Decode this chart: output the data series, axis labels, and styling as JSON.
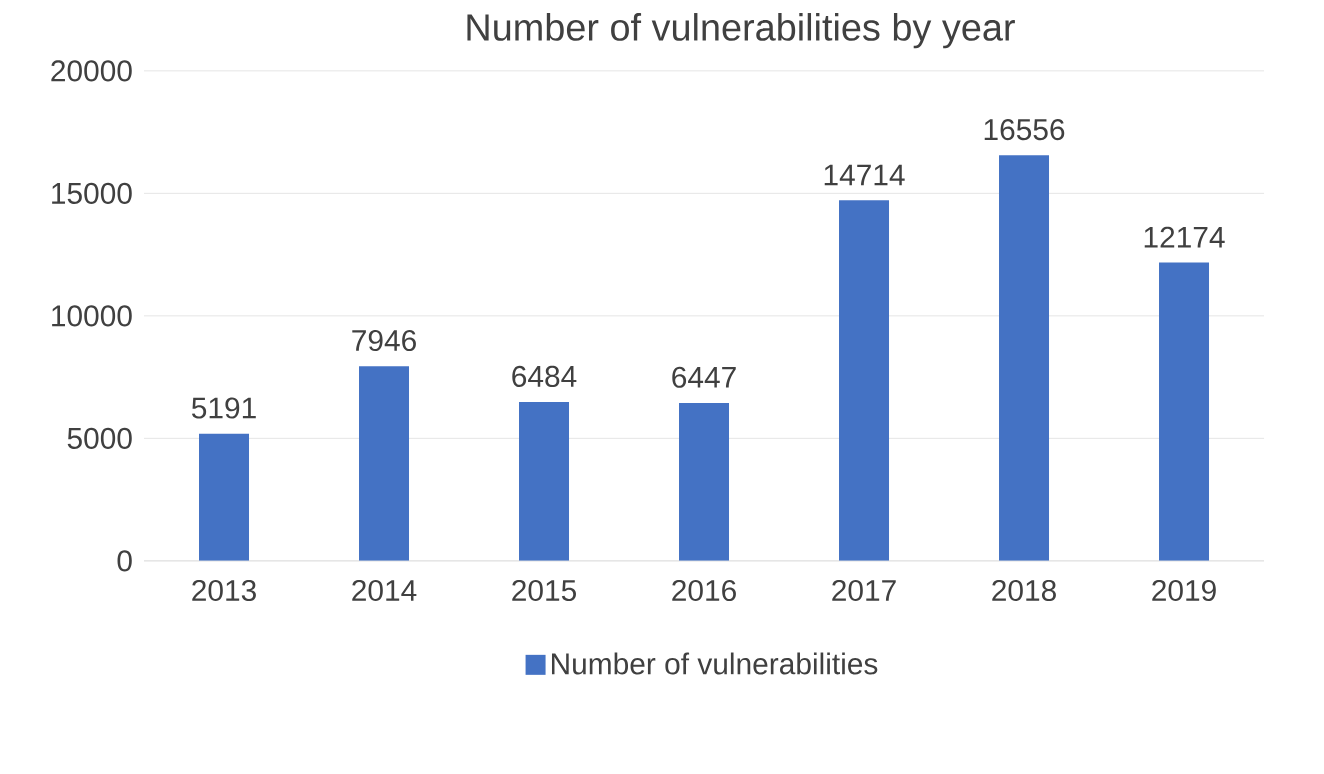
{
  "chart_data": {
    "type": "bar",
    "title": "Number of vulnerabilities by year",
    "categories": [
      "2013",
      "2014",
      "2015",
      "2016",
      "2017",
      "2018",
      "2019"
    ],
    "series": [
      {
        "name": "Number of vulnerabilities",
        "color": "#4472c4",
        "values": [
          5191,
          7946,
          6484,
          6447,
          14714,
          16556,
          12174
        ]
      }
    ],
    "ylim": [
      0,
      20000
    ],
    "yticks": [
      0,
      5000,
      10000,
      15000,
      20000
    ],
    "grid": "y",
    "legend": "bottom",
    "data_labels": true
  }
}
